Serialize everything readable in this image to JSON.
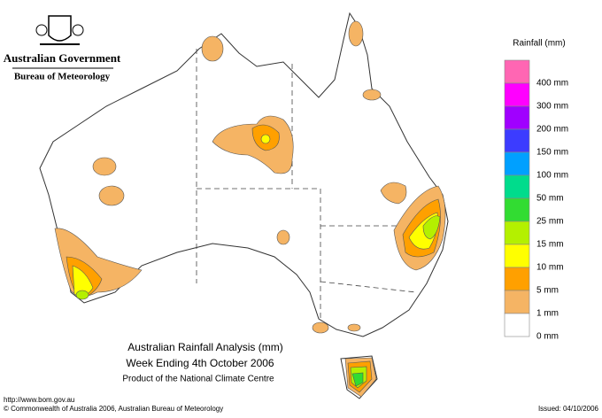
{
  "header": {
    "government": "Australian Government",
    "bureau": "Bureau of Meteorology"
  },
  "legend": {
    "title": "Rainfall (mm)",
    "items": [
      {
        "color": "#ff66b3",
        "label": "400 mm"
      },
      {
        "color": "#ff00ff",
        "label": "300 mm"
      },
      {
        "color": "#a000ff",
        "label": "200 mm"
      },
      {
        "color": "#3c3cff",
        "label": "150 mm"
      },
      {
        "color": "#00a0ff",
        "label": "100 mm"
      },
      {
        "color": "#00dc8c",
        "label": "50 mm"
      },
      {
        "color": "#32dc32",
        "label": "25 mm"
      },
      {
        "color": "#b4f000",
        "label": "15 mm"
      },
      {
        "color": "#ffff00",
        "label": "10 mm"
      },
      {
        "color": "#ffa000",
        "label": "5 mm"
      },
      {
        "color": "#f5b464",
        "label": "1 mm"
      },
      {
        "color": "#ffffff",
        "label": "0 mm"
      }
    ]
  },
  "title": {
    "line1": "Australian Rainfall Analysis (mm)",
    "line2": "Week Ending 4th October 2006",
    "line3": "Product of the National Climate Centre"
  },
  "footer": {
    "url": "http://www.bom.gov.au",
    "copyright": "© Commonwealth of Australia 2006, Australian Bureau of Meteorology",
    "issued": "Issued: 04/10/2006"
  }
}
